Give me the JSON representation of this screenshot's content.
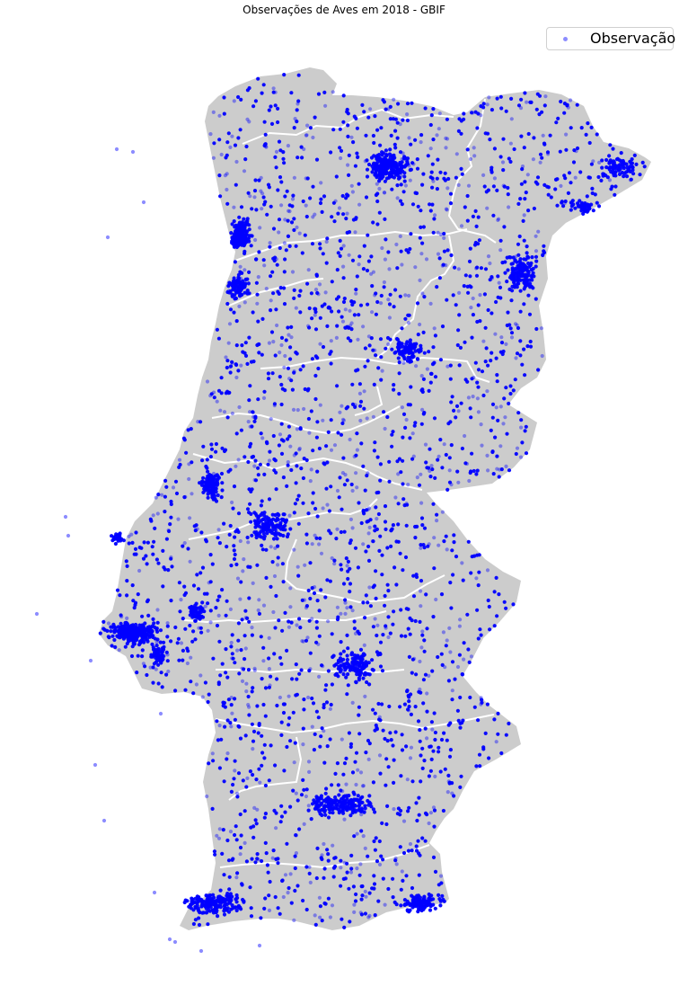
{
  "title": "Observações de Aves em 2018 - GBIF",
  "legend": {
    "label": "Observação",
    "marker_color": "#0000ff"
  },
  "colors": {
    "land": "#cccccc",
    "borders": "#ffffff",
    "points": "#0000ff",
    "background": "#ffffff"
  }
}
